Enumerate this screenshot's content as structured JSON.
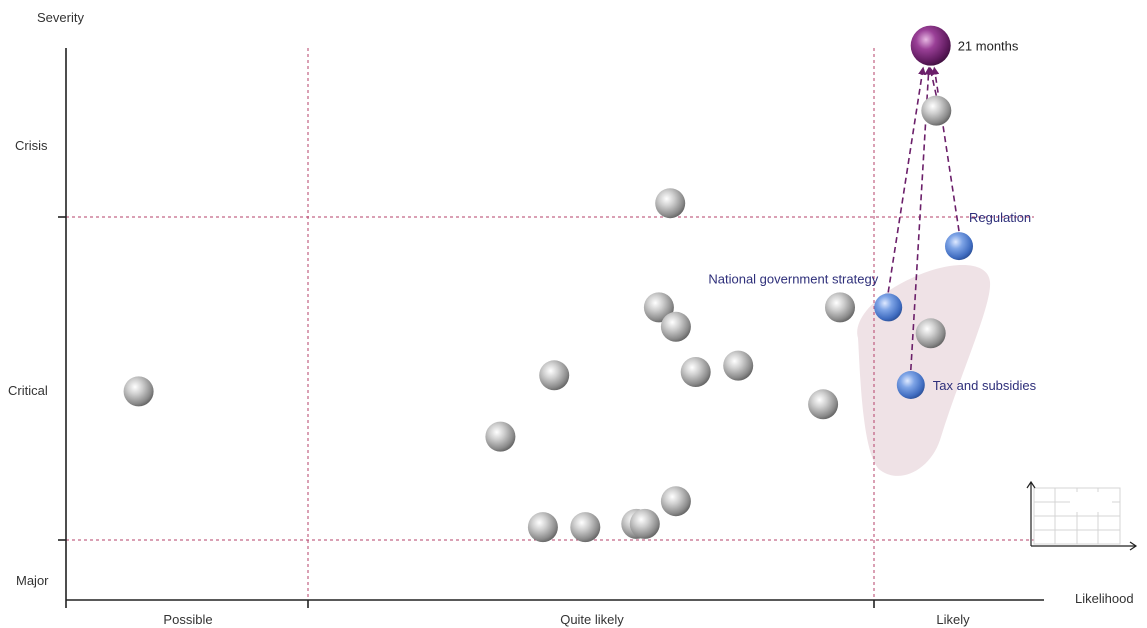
{
  "chart_data": {
    "type": "scatter",
    "xlabel": "Likelihood",
    "ylabel": "Severity",
    "x_zones": [
      "Possible",
      "Quite likely",
      "Likely"
    ],
    "y_zones": [
      "Major",
      "Critical",
      "Crisis"
    ],
    "grid": "dashed zone dividers",
    "colors": {
      "grid": "#b5406a",
      "axis": "#222222",
      "gray_bubble": "#9a9a9a",
      "blue_bubble": "#4f7fd0",
      "purple_bubble": "#6b1f6a",
      "highlight": "#efe2e6",
      "arrow": "#6b1f6a"
    },
    "points_gray": [
      {
        "x": 0.3,
        "y": 1.46
      },
      {
        "x": 1.68,
        "y": 1.32
      },
      {
        "x": 1.87,
        "y": 1.51
      },
      {
        "x": 1.98,
        "y": 1.04
      },
      {
        "x": 1.83,
        "y": 1.04
      },
      {
        "x": 2.16,
        "y": 1.05
      },
      {
        "x": 2.19,
        "y": 1.05
      },
      {
        "x": 2.3,
        "y": 1.12
      },
      {
        "x": 2.37,
        "y": 1.52
      },
      {
        "x": 2.52,
        "y": 1.54
      },
      {
        "x": 2.28,
        "y": 2.07
      },
      {
        "x": 2.24,
        "y": 1.72
      },
      {
        "x": 2.3,
        "y": 1.66
      },
      {
        "x": 2.88,
        "y": 1.72
      },
      {
        "x": 2.82,
        "y": 1.42
      },
      {
        "x": 3.2,
        "y": 1.64
      },
      {
        "x": 3.22,
        "y": 2.54
      }
    ],
    "points_blue": [
      {
        "x": 3.05,
        "y": 1.72,
        "label": "National government strategy"
      },
      {
        "x": 3.3,
        "y": 1.91,
        "label": "Regulation"
      },
      {
        "x": 3.13,
        "y": 1.48,
        "label": "Tax and subsidies"
      }
    ],
    "point_purple": {
      "x": 3.2,
      "y": 2.87,
      "label": "21 months"
    }
  }
}
